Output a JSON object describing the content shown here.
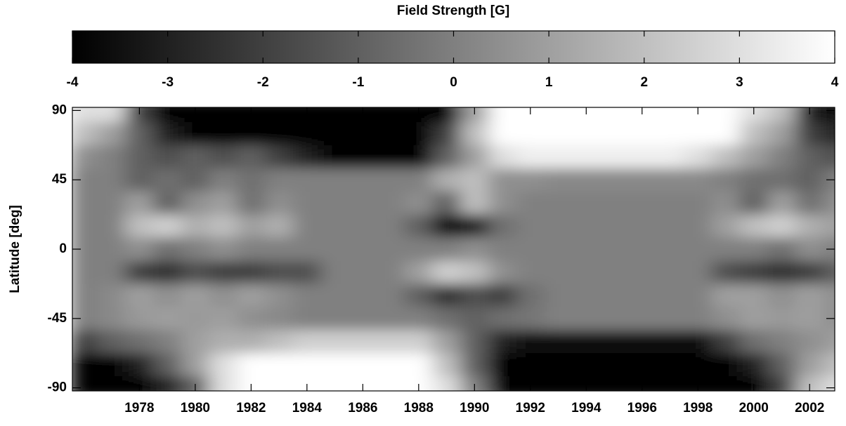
{
  "chart_data": {
    "type": "heatmap",
    "colorbar_title": "Field Strength [G]",
    "ylabel": "Latitude [deg]",
    "colormap": "gray",
    "zlim": [
      -4,
      4
    ],
    "cticks": [
      -4,
      -3,
      -2,
      -1,
      0,
      1,
      2,
      3,
      4
    ],
    "xlim": [
      1975.6,
      2002.9
    ],
    "xticks": [
      1978,
      1980,
      1982,
      1984,
      1986,
      1988,
      1990,
      1992,
      1994,
      1996,
      1998,
      2000,
      2002
    ],
    "ylim": [
      -92,
      92
    ],
    "yticks": [
      -90,
      -45,
      0,
      45,
      90
    ],
    "x": [
      1976,
      1977,
      1978,
      1979,
      1980,
      1981,
      1982,
      1983,
      1984,
      1985,
      1986,
      1987,
      1988,
      1989,
      1990,
      1991,
      1992,
      1993,
      1994,
      1995,
      1996,
      1997,
      1998,
      1999,
      2000,
      2001,
      2002,
      2003
    ],
    "y": [
      90,
      75,
      60,
      45,
      30,
      15,
      0,
      -15,
      -30,
      -45,
      -60,
      -75,
      -90
    ],
    "values": [
      [
        3,
        3,
        -2,
        -4,
        -4,
        -4,
        -4,
        -4,
        -4,
        -4,
        -4,
        -4,
        -4,
        -4,
        1,
        4,
        4,
        4,
        4,
        4,
        4,
        4,
        4,
        4,
        3,
        2,
        -3,
        -4
      ],
      [
        2,
        1,
        -1,
        -3,
        -4,
        -4,
        -4,
        -4,
        -4,
        -4,
        -4,
        -4,
        -4,
        -2,
        2,
        4,
        4,
        4,
        4,
        4,
        4,
        4,
        4,
        4,
        2,
        1,
        -2,
        -3
      ],
      [
        0.5,
        0,
        -1,
        -1.5,
        -1,
        -1.5,
        -1,
        -2,
        -3,
        -4,
        -4,
        -4,
        -4,
        -1,
        1,
        3,
        3.5,
        3.5,
        3.5,
        3.5,
        3.5,
        3.5,
        3,
        2,
        1,
        0,
        -1,
        -1.5
      ],
      [
        0,
        0,
        -1,
        -0.5,
        -1,
        0,
        -0.5,
        0,
        0,
        0,
        0,
        0,
        0,
        1.5,
        2,
        0.5,
        0.5,
        0.3,
        0.3,
        0.3,
        0.3,
        0.3,
        0.3,
        0,
        -0.5,
        -0.5,
        -1,
        0
      ],
      [
        0,
        0,
        1,
        -1,
        0.5,
        1,
        -0.5,
        0.5,
        0,
        0,
        0,
        0,
        0.5,
        -1,
        2,
        0.5,
        0,
        0,
        0,
        0,
        0,
        0,
        0,
        0.5,
        -1,
        1,
        -0.5,
        0.5
      ],
      [
        0,
        0,
        2,
        2.5,
        1.5,
        2,
        1,
        1.5,
        0,
        0,
        0,
        0,
        -1,
        -3.5,
        -3,
        -0.5,
        0,
        0,
        0,
        0,
        0,
        0,
        0,
        1,
        2,
        2.5,
        1.5,
        1
      ],
      [
        0,
        0,
        0.5,
        -0.5,
        0,
        0.5,
        0,
        0,
        0,
        0,
        0,
        0,
        0,
        0,
        0.5,
        0,
        0,
        0,
        0,
        0,
        0,
        0,
        0,
        0,
        0,
        -0.5,
        0.5,
        0
      ],
      [
        0,
        0,
        -2,
        -2.5,
        -1.5,
        -2,
        -2,
        -1.5,
        -1.5,
        0,
        0,
        0,
        1,
        2.5,
        2,
        0.5,
        0,
        0,
        0,
        0,
        0,
        0,
        0,
        -1.5,
        -2,
        -2.5,
        -2,
        -1
      ],
      [
        0,
        0.3,
        1,
        0.5,
        1,
        0.5,
        1,
        0.5,
        0,
        0,
        0,
        0,
        -1,
        -2.5,
        -1.5,
        -2,
        -0.5,
        0,
        0,
        0,
        0,
        0,
        0,
        1,
        1,
        0.5,
        1,
        0.5
      ],
      [
        0,
        0.3,
        0.8,
        1,
        0.8,
        1,
        0.5,
        0.3,
        0,
        0,
        0,
        0,
        0,
        -0.5,
        -1,
        -0.5,
        -0.3,
        0,
        0,
        0,
        0,
        0,
        0,
        0.5,
        1,
        0.8,
        1,
        0.5
      ],
      [
        -2,
        -1,
        -0.5,
        0,
        1,
        1.5,
        1.5,
        2,
        2.5,
        2.5,
        2.5,
        2.5,
        2.5,
        1,
        -1,
        -3,
        -3.5,
        -3.5,
        -3.5,
        -3.5,
        -3.5,
        -3.5,
        -3.5,
        -2,
        -0.5,
        0,
        0.5,
        1
      ],
      [
        -4,
        -4,
        -3,
        -1,
        1,
        3,
        4,
        4,
        4,
        4,
        4,
        4,
        4,
        2,
        -1,
        -4,
        -4,
        -4,
        -4,
        -4,
        -4,
        -4,
        -4,
        -4,
        -3,
        -1,
        1,
        2
      ],
      [
        -4,
        -4,
        -4,
        -3,
        -1,
        3,
        4,
        4,
        4,
        4,
        4,
        4,
        4,
        3,
        0,
        -4,
        -4,
        -4,
        -4,
        -4,
        -4,
        -4,
        -4,
        -4,
        -4,
        -2,
        2,
        3
      ]
    ]
  }
}
